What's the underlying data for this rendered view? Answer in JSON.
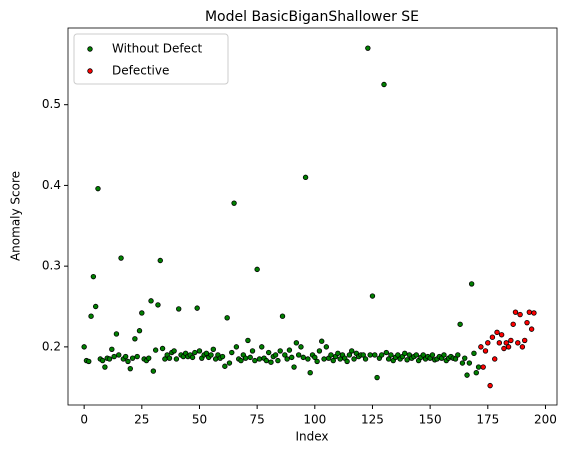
{
  "chart_data": {
    "type": "scatter",
    "title": "Model BasicBiganShallower SE",
    "x_label": "Index",
    "y_label": "Anomaly Score",
    "xlim": [
      -7,
      205
    ],
    "ylim": [
      0.128,
      0.595
    ],
    "xticks": [
      0,
      25,
      50,
      75,
      100,
      125,
      150,
      175,
      200
    ],
    "yticks": [
      0.2,
      0.3,
      0.4,
      0.5
    ],
    "legend": "upper left",
    "series": [
      {
        "name": "Without Defect",
        "color": "green",
        "x": [
          0,
          1,
          2,
          3,
          4,
          5,
          6,
          7,
          8,
          9,
          10,
          11,
          12,
          13,
          14,
          15,
          16,
          17,
          18,
          19,
          20,
          21,
          22,
          23,
          24,
          25,
          26,
          27,
          28,
          29,
          30,
          31,
          32,
          33,
          34,
          35,
          36,
          37,
          38,
          39,
          40,
          41,
          42,
          43,
          44,
          45,
          46,
          47,
          48,
          49,
          50,
          51,
          52,
          53,
          54,
          55,
          56,
          57,
          58,
          59,
          60,
          61,
          62,
          63,
          64,
          65,
          66,
          67,
          68,
          69,
          70,
          71,
          72,
          73,
          74,
          75,
          76,
          77,
          78,
          79,
          80,
          81,
          82,
          83,
          84,
          85,
          86,
          87,
          88,
          89,
          90,
          91,
          92,
          93,
          94,
          95,
          96,
          97,
          98,
          99,
          100,
          101,
          102,
          103,
          104,
          105,
          106,
          107,
          108,
          109,
          110,
          111,
          112,
          113,
          114,
          115,
          116,
          117,
          118,
          119,
          120,
          121,
          122,
          123,
          124,
          125,
          126,
          127,
          128,
          129,
          130,
          131,
          132,
          133,
          134,
          135,
          136,
          137,
          138,
          139,
          140,
          141,
          142,
          143,
          144,
          145,
          146,
          147,
          148,
          149,
          150,
          151,
          152,
          153,
          154,
          155,
          156,
          157,
          158,
          159,
          160,
          161,
          162,
          163,
          164,
          165,
          166,
          167,
          168,
          169,
          170,
          171
        ],
        "values": [
          0.2,
          0.183,
          0.182,
          0.238,
          0.287,
          0.25,
          0.396,
          0.185,
          0.183,
          0.175,
          0.186,
          0.185,
          0.197,
          0.188,
          0.216,
          0.19,
          0.31,
          0.185,
          0.188,
          0.182,
          0.173,
          0.186,
          0.21,
          0.188,
          0.22,
          0.242,
          0.185,
          0.183,
          0.186,
          0.257,
          0.17,
          0.196,
          0.252,
          0.307,
          0.198,
          0.185,
          0.19,
          0.186,
          0.193,
          0.195,
          0.185,
          0.247,
          0.19,
          0.188,
          0.192,
          0.188,
          0.19,
          0.187,
          0.193,
          0.248,
          0.195,
          0.186,
          0.19,
          0.192,
          0.187,
          0.19,
          0.197,
          0.185,
          0.19,
          0.186,
          0.188,
          0.176,
          0.236,
          0.18,
          0.193,
          0.378,
          0.2,
          0.185,
          0.183,
          0.19,
          0.186,
          0.208,
          0.187,
          0.195,
          0.183,
          0.296,
          0.185,
          0.2,
          0.186,
          0.183,
          0.193,
          0.181,
          0.188,
          0.19,
          0.183,
          0.195,
          0.238,
          0.19,
          0.185,
          0.196,
          0.187,
          0.175,
          0.205,
          0.19,
          0.2,
          0.187,
          0.41,
          0.185,
          0.168,
          0.19,
          0.187,
          0.182,
          0.195,
          0.207,
          0.185,
          0.2,
          0.186,
          0.19,
          0.183,
          0.188,
          0.192,
          0.185,
          0.19,
          0.186,
          0.182,
          0.19,
          0.195,
          0.185,
          0.192,
          0.188,
          0.19,
          0.19,
          0.185,
          0.57,
          0.19,
          0.263,
          0.19,
          0.162,
          0.186,
          0.19,
          0.525,
          0.193,
          0.185,
          0.19,
          0.183,
          0.187,
          0.19,
          0.185,
          0.188,
          0.192,
          0.184,
          0.19,
          0.186,
          0.188,
          0.19,
          0.183,
          0.187,
          0.19,
          0.185,
          0.188,
          0.186,
          0.19,
          0.184,
          0.185,
          0.188,
          0.186,
          0.19,
          0.183,
          0.186,
          0.188,
          0.186,
          0.185,
          0.19,
          0.228,
          0.18,
          0.186,
          0.165,
          0.18,
          0.278,
          0.192,
          0.168,
          0.175
        ]
      },
      {
        "name": "Defective",
        "color": "red",
        "x": [
          172,
          173,
          174,
          175,
          176,
          177,
          178,
          179,
          180,
          181,
          182,
          183,
          184,
          185,
          186,
          187,
          188,
          189,
          190,
          191,
          192,
          193,
          194,
          195
        ],
        "values": [
          0.2,
          0.175,
          0.195,
          0.205,
          0.152,
          0.212,
          0.185,
          0.218,
          0.205,
          0.215,
          0.198,
          0.205,
          0.2,
          0.208,
          0.228,
          0.243,
          0.205,
          0.24,
          0.2,
          0.208,
          0.23,
          0.243,
          0.222,
          0.242
        ]
      }
    ]
  }
}
